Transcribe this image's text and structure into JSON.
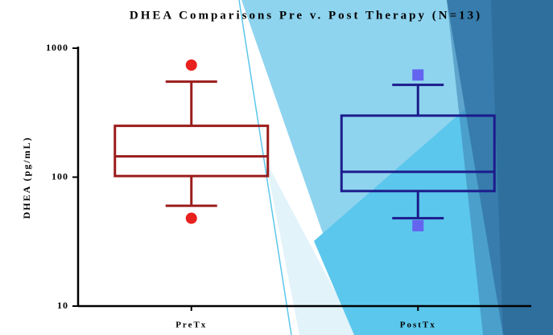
{
  "chart_data": {
    "type": "box",
    "title": "DHEA Comparisons Pre v. Post Therapy (N=13)",
    "y_label": "DHEA (pg/mL)",
    "log_scale": true,
    "categories": [
      "PreTx",
      "PostTx"
    ],
    "boxes": [
      {
        "whislo": 60,
        "q1": 102,
        "med": 145,
        "q3": 250,
        "whishi": 550,
        "fliers": [
          740,
          48
        ],
        "color": "#9b1c1c",
        "flier_color": "#e8201e",
        "flier_marker": "circle"
      },
      {
        "whislo": 48,
        "q1": 78,
        "med": 110,
        "q3": 300,
        "whishi": 520,
        "fliers": [
          620,
          42
        ],
        "color": "#1c1c8c",
        "flier_color": "#6464f0",
        "flier_marker": "square"
      }
    ],
    "ylim": [
      10,
      1000
    ],
    "yticks": [
      10,
      100,
      1000
    ]
  }
}
